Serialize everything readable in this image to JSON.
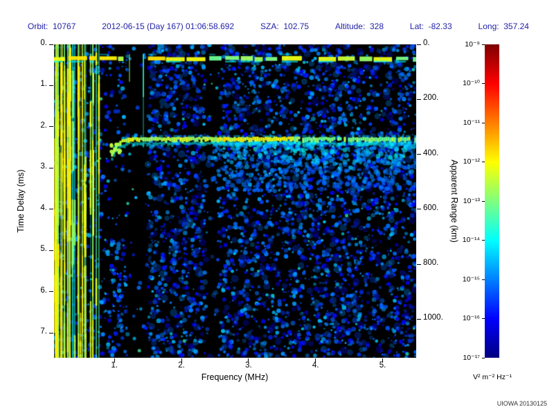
{
  "header": {
    "items": [
      {
        "label": "Orbit:",
        "value": "10767"
      },
      {
        "label": "",
        "value": "2012-06-15 (Day 167) 01:06:58.692"
      },
      {
        "label": "SZA:",
        "value": "102.75"
      },
      {
        "label": "Altitude:",
        "value": "328"
      },
      {
        "label": "Lat:",
        "value": "-82.33"
      },
      {
        "label": "Long:",
        "value": "357.24"
      }
    ]
  },
  "chart_data": {
    "type": "heatmap",
    "description": "Radar sounder ionogram: received spectral density vs frequency and time delay, jet colormap on black background",
    "x_axis": {
      "label": "Frequency (MHz)",
      "min": 0.1,
      "max": 5.5,
      "ticks": [
        1,
        2,
        3,
        4,
        5
      ],
      "tick_labels": [
        "1.",
        "2.",
        "3.",
        "4.",
        "5."
      ]
    },
    "y_axis": {
      "label": "Time Delay (ms)",
      "min": 0,
      "max": 7.6,
      "ticks": [
        0,
        1,
        2,
        3,
        4,
        5,
        6,
        7
      ],
      "tick_labels": [
        "0.",
        "1.",
        "2.",
        "3.",
        "4.",
        "5.",
        "6.",
        "7."
      ]
    },
    "y2_axis": {
      "label": "Apparent Range (km)",
      "km_per_ms": 150,
      "ticks_km": [
        0,
        200,
        400,
        600,
        800,
        1000
      ],
      "tick_labels": [
        "0.",
        "200.",
        "400.",
        "600.",
        "800.",
        "1000."
      ]
    },
    "colorbar": {
      "scale": "log",
      "max_label_exp": -9,
      "min_label_exp": -17,
      "tick_labels": [
        "10⁻⁹",
        "10⁻¹⁰",
        "10⁻¹¹",
        "10⁻¹²",
        "10⁻¹³",
        "10⁻¹⁴",
        "10⁻¹⁵",
        "10⁻¹⁶",
        "10⁻¹⁷"
      ],
      "unit": "V² m⁻² Hz⁻¹"
    },
    "features": {
      "seed": 20130125,
      "surface_echo": {
        "delay_ms": 0.33,
        "freq_span_mhz": [
          0.1,
          5.5
        ]
      },
      "ionosphere_echo": {
        "delay_ms": 2.3,
        "start_mhz": 0.95,
        "apparent_range_km": 345
      },
      "interference_band": {
        "freq_span_mhz": [
          0.1,
          0.8
        ]
      },
      "quiet_bands_mhz": [
        [
          1.2,
          1.5
        ],
        [
          2.35,
          2.55
        ]
      ],
      "diffuse_scatter": {
        "freq_span_mhz": [
          2.4,
          5.5
        ],
        "delay_span_ms": [
          2.4,
          3.6
        ]
      },
      "background": "scattered low-level blue speckle noise over black"
    },
    "credit": "UIOWA 20130125"
  }
}
